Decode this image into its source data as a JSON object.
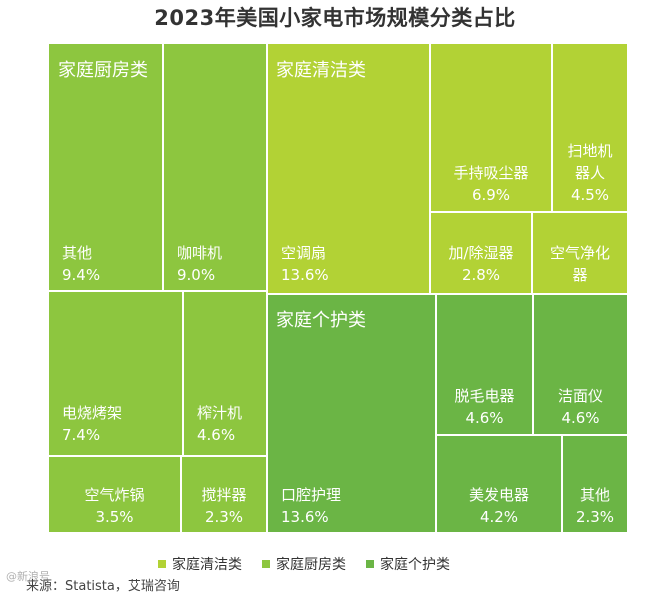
{
  "title": "2023年美国小家电市场规模分类占比",
  "source": "来源：Statista，艾瑞咨询",
  "watermark": "@新浪号",
  "colors": {
    "cleaning": "#b2d235",
    "kitchen": "#8dc63f",
    "personal": "#6bb545",
    "border": "#ffffff",
    "text": "#ffffff"
  },
  "chart_data": {
    "type": "treemap",
    "title": "2023年美国小家电市场规模分类占比",
    "unit": "%",
    "legend": [
      "家庭清洁类",
      "家庭厨房类",
      "家庭个护类"
    ],
    "legend_placement": "bottom",
    "groups": [
      {
        "name": "家庭厨房类",
        "color_key": "kitchen",
        "items": [
          {
            "name": "其他",
            "value": 9.4
          },
          {
            "name": "咖啡机",
            "value": 9.0
          },
          {
            "name": "电烧烤架",
            "value": 7.4
          },
          {
            "name": "榨汁机",
            "value": 4.6
          },
          {
            "name": "空气炸锅",
            "value": 3.5
          },
          {
            "name": "搅拌器",
            "value": 2.3
          }
        ]
      },
      {
        "name": "家庭清洁类",
        "color_key": "cleaning",
        "items": [
          {
            "name": "空调扇",
            "value": 13.6
          },
          {
            "name": "手持吸尘器",
            "value": 6.9
          },
          {
            "name": "扫地机器人",
            "value": 4.5
          },
          {
            "name": "加/除湿器",
            "value": 2.8
          },
          {
            "name": "空气净化器",
            "value": null
          }
        ]
      },
      {
        "name": "家庭个护类",
        "color_key": "personal",
        "items": [
          {
            "name": "口腔护理",
            "value": 13.6
          },
          {
            "name": "脱毛电器",
            "value": 4.6
          },
          {
            "name": "洁面仪",
            "value": 4.6
          },
          {
            "name": "美发电器",
            "value": 4.2
          },
          {
            "name": "其他",
            "value": 2.3
          }
        ]
      }
    ],
    "cell_labels": {
      "其他|家庭厨房类": [
        "其他",
        "9.4%"
      ],
      "咖啡机": [
        "咖啡机",
        "9.0%"
      ],
      "电烧烤架": [
        "电烧烤架",
        "7.4%"
      ],
      "榨汁机": [
        "榨汁机",
        "4.6%"
      ],
      "空气炸锅": [
        "空气炸锅",
        "3.5%"
      ],
      "搅拌器": [
        "搅拌器",
        "2.3%"
      ],
      "空调扇": [
        "空调扇",
        "13.6%"
      ],
      "手持吸尘器": [
        "手持吸尘器",
        "6.9%"
      ],
      "扫地机器人": [
        "扫地机",
        "器人",
        "4.5%"
      ],
      "加/除湿器": [
        "加/除湿器",
        "2.8%"
      ],
      "空气净化器": [
        "空气净化",
        "器"
      ],
      "口腔护理": [
        "口腔护理",
        "13.6%"
      ],
      "脱毛电器": [
        "脱毛电器",
        "4.6%"
      ],
      "洁面仪": [
        "洁面仪",
        "4.6%"
      ],
      "美发电器": [
        "美发电器",
        "4.2%"
      ],
      "其他|家庭个护类": [
        "其他",
        "2.3%"
      ]
    }
  }
}
